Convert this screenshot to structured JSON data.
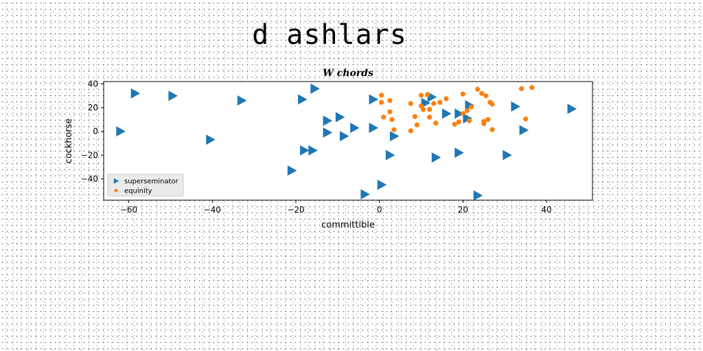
{
  "figure": {
    "suptitle": "d ashlars"
  },
  "chart_data": {
    "type": "scatter",
    "title": "W chords",
    "xlabel": "committible",
    "ylabel": "cockhorse",
    "xlim": [
      -66,
      51
    ],
    "ylim": [
      -58,
      42
    ],
    "xticks": [
      -60,
      -40,
      -20,
      0,
      20,
      40
    ],
    "yticks": [
      -40,
      -20,
      0,
      20,
      40
    ],
    "legend_position": "lower-left",
    "series": [
      {
        "name": "superseminator",
        "marker": "triangle-right",
        "color": "#1f77b4",
        "points": [
          [
            -58.5,
            32
          ],
          [
            -49.5,
            30
          ],
          [
            -15.5,
            36
          ],
          [
            -33,
            26
          ],
          [
            -18.5,
            27
          ],
          [
            -62,
            0
          ],
          [
            -40.5,
            -7
          ],
          [
            -12.5,
            9
          ],
          [
            -9.5,
            12
          ],
          [
            -12.5,
            -1
          ],
          [
            -6,
            3
          ],
          [
            -8.5,
            -4
          ],
          [
            -1.5,
            3
          ],
          [
            -18,
            -16
          ],
          [
            -16,
            -16
          ],
          [
            -21,
            -33
          ],
          [
            -1.5,
            27
          ],
          [
            3.5,
            -4
          ],
          [
            2.5,
            -20
          ],
          [
            0.5,
            -45
          ],
          [
            -3.5,
            -53
          ],
          [
            11,
            24
          ],
          [
            12.5,
            29
          ],
          [
            16,
            15
          ],
          [
            19,
            15
          ],
          [
            21.5,
            22
          ],
          [
            21,
            11
          ],
          [
            13.5,
            -22
          ],
          [
            19,
            -18
          ],
          [
            23.5,
            -54
          ],
          [
            30.5,
            -20
          ],
          [
            32.5,
            21
          ],
          [
            34.5,
            1
          ],
          [
            46,
            19
          ]
        ]
      },
      {
        "name": "equinity",
        "marker": "circle",
        "color": "#ff7f0e",
        "points": [
          [
            0.5,
            30.5
          ],
          [
            0.5,
            24.5
          ],
          [
            2.5,
            26
          ],
          [
            1,
            12
          ],
          [
            2.5,
            16.5
          ],
          [
            3,
            10
          ],
          [
            3.5,
            1.5
          ],
          [
            7.5,
            23.5
          ],
          [
            7.5,
            0.5
          ],
          [
            8.5,
            12.5
          ],
          [
            9,
            5.5
          ],
          [
            10,
            30.5
          ],
          [
            10,
            21.5
          ],
          [
            10.5,
            18.5
          ],
          [
            11.5,
            31
          ],
          [
            12,
            12
          ],
          [
            12,
            18.5
          ],
          [
            13,
            23.5
          ],
          [
            13.5,
            7
          ],
          [
            14.5,
            24.5
          ],
          [
            16,
            27.5
          ],
          [
            18,
            6
          ],
          [
            19,
            8
          ],
          [
            20,
            31.5
          ],
          [
            20,
            15
          ],
          [
            21,
            17.5
          ],
          [
            22,
            20.5
          ],
          [
            23.5,
            35.5
          ],
          [
            24.5,
            32
          ],
          [
            25,
            8.5
          ],
          [
            25.5,
            30
          ],
          [
            26,
            10
          ],
          [
            26.5,
            24.5
          ],
          [
            27,
            23
          ],
          [
            27,
            1.5
          ],
          [
            34,
            36
          ],
          [
            35,
            10.5
          ],
          [
            36.5,
            37
          ],
          [
            25,
            6.5
          ],
          [
            21.5,
            9
          ]
        ]
      }
    ]
  }
}
